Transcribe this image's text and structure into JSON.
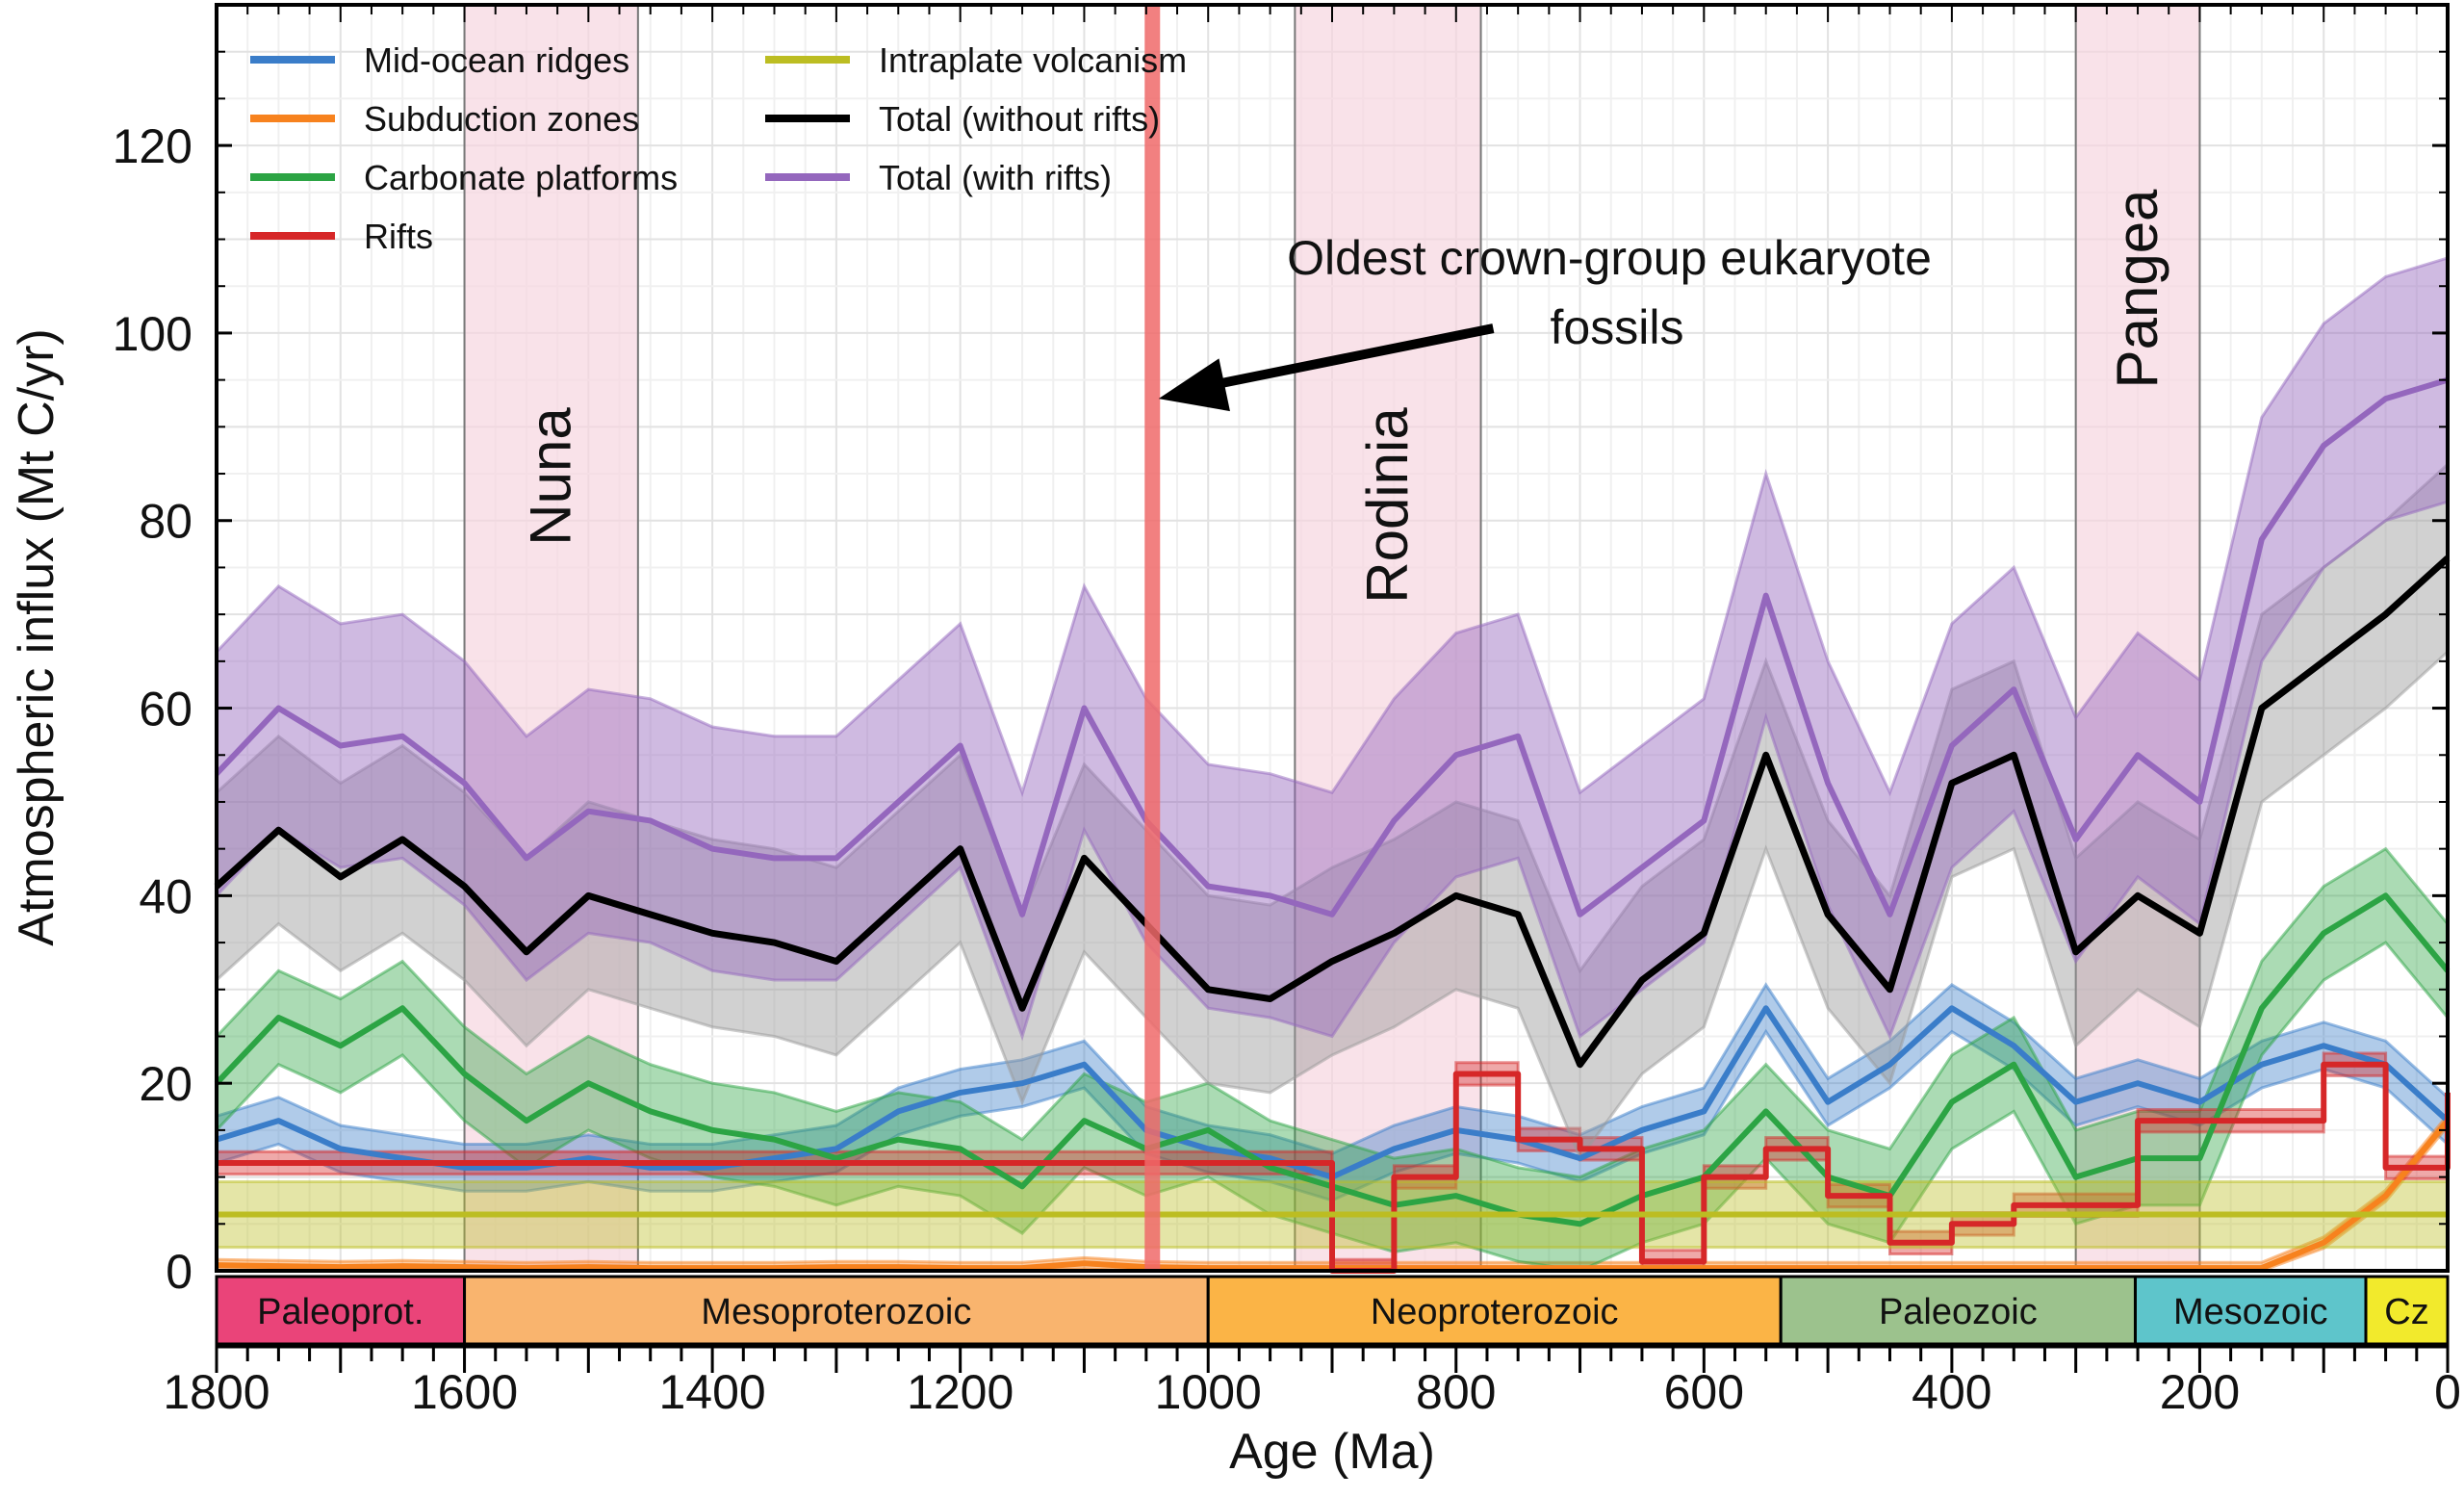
{
  "chart_data": {
    "type": "line",
    "title": "",
    "xlabel": "Age (Ma)",
    "ylabel": "Atmospheric influx (Mt C/yr)",
    "xlim": [
      1800,
      0
    ],
    "ylim": [
      0,
      135
    ],
    "x_ticks": [
      1800,
      1600,
      1400,
      1200,
      1000,
      800,
      600,
      400,
      200,
      0
    ],
    "y_ticks": [
      0,
      20,
      40,
      60,
      80,
      100,
      120
    ],
    "grid": true,
    "legend_placement": "top-left",
    "x": [
      1800,
      1750,
      1700,
      1650,
      1600,
      1550,
      1500,
      1450,
      1400,
      1350,
      1300,
      1250,
      1200,
      1150,
      1100,
      1050,
      1000,
      950,
      900,
      850,
      800,
      750,
      700,
      650,
      600,
      550,
      500,
      450,
      400,
      350,
      300,
      250,
      200,
      150,
      100,
      50,
      0
    ],
    "series": [
      {
        "name": "Mid-ocean ridges",
        "color": "#3a7dc9",
        "spread": 2.5,
        "values": [
          14,
          16,
          13,
          12,
          11,
          11,
          12,
          11,
          11,
          12,
          13,
          17,
          19,
          20,
          22,
          15,
          13,
          12,
          10,
          13,
          15,
          14,
          12,
          15,
          17,
          28,
          18,
          22,
          28,
          24,
          18,
          20,
          18,
          22,
          24,
          22,
          16
        ]
      },
      {
        "name": "Subduction zones",
        "color": "#f7821e",
        "spread": 0.6,
        "values": [
          0.6,
          0.5,
          0.4,
          0.5,
          0.4,
          0.3,
          0.4,
          0.3,
          0.3,
          0.3,
          0.4,
          0.4,
          0.3,
          0.3,
          0.8,
          0.4,
          0.3,
          0.3,
          0.3,
          0.3,
          0.3,
          0.3,
          0.3,
          0.3,
          0.3,
          0.3,
          0.3,
          0.3,
          0.3,
          0.3,
          0.3,
          0.3,
          0.3,
          0.3,
          3,
          8,
          16
        ]
      },
      {
        "name": "Carbonate platforms",
        "color": "#2ca444",
        "spread": 5,
        "values": [
          20,
          27,
          24,
          28,
          21,
          16,
          20,
          17,
          15,
          14,
          12,
          14,
          13,
          9,
          16,
          13,
          15,
          11,
          9,
          7,
          8,
          6,
          5,
          8,
          10,
          17,
          10,
          8,
          18,
          22,
          10,
          12,
          12,
          28,
          36,
          40,
          32
        ]
      },
      {
        "name": "Rifts",
        "color": "#d62728",
        "spread": 1.2,
        "step": true,
        "values": [
          11.5,
          11.5,
          11.5,
          11.5,
          11.5,
          11.5,
          11.5,
          11.5,
          11.5,
          11.5,
          11.5,
          11.5,
          11.5,
          11.5,
          11.5,
          11.5,
          11.5,
          11.5,
          0,
          10,
          21,
          14,
          13,
          1,
          10,
          13,
          8,
          3,
          5,
          7,
          7,
          16,
          16,
          16,
          22,
          11,
          19
        ]
      },
      {
        "name": "Intraplate volcanism",
        "color": "#bcbd22",
        "spread": 3.5,
        "values": [
          6,
          6,
          6,
          6,
          6,
          6,
          6,
          6,
          6,
          6,
          6,
          6,
          6,
          6,
          6,
          6,
          6,
          6,
          6,
          6,
          6,
          6,
          6,
          6,
          6,
          6,
          6,
          6,
          6,
          6,
          6,
          6,
          6,
          6,
          6,
          6,
          6
        ]
      },
      {
        "name": "Total (without rifts)",
        "color": "#000000",
        "band_color": "#9a9a9a",
        "spread": 10,
        "values": [
          41,
          47,
          42,
          46,
          41,
          34,
          40,
          38,
          36,
          35,
          33,
          39,
          45,
          28,
          44,
          37,
          30,
          29,
          33,
          36,
          40,
          38,
          22,
          31,
          36,
          55,
          38,
          30,
          52,
          55,
          34,
          40,
          36,
          60,
          65,
          70,
          76
        ]
      },
      {
        "name": "Total (with rifts)",
        "color": "#9467bd",
        "spread": 13,
        "values": [
          53,
          60,
          56,
          57,
          52,
          44,
          49,
          48,
          45,
          44,
          44,
          50,
          56,
          38,
          60,
          48,
          41,
          40,
          38,
          48,
          55,
          57,
          38,
          43,
          48,
          72,
          52,
          38,
          56,
          62,
          46,
          55,
          50,
          78,
          88,
          93,
          95
        ]
      }
    ],
    "supercontinents": [
      {
        "label": "Nuna",
        "start": 1600,
        "end": 1460
      },
      {
        "label": "Rodinia",
        "start": 930,
        "end": 780
      },
      {
        "label": "Pangea",
        "start": 300,
        "end": 200
      }
    ],
    "eras": [
      {
        "label": "Paleoprot.",
        "start": 1800,
        "end": 1600,
        "color": "#ea4479"
      },
      {
        "label": "Mesoproterozoic",
        "start": 1600,
        "end": 1000,
        "color": "#f9b46e"
      },
      {
        "label": "Neoproterozoic",
        "start": 1000,
        "end": 538,
        "color": "#fbb446"
      },
      {
        "label": "Paleozoic",
        "start": 538,
        "end": 252,
        "color": "#9cc28d"
      },
      {
        "label": "Mesozoic",
        "start": 252,
        "end": 66,
        "color": "#5ec5cb"
      },
      {
        "label": "Cz",
        "start": 66,
        "end": 0,
        "color": "#f2ea2c"
      }
    ],
    "annotation": {
      "line1": "Oldest crown-group eukaryote",
      "line2": "fossils",
      "marker_age": 1045,
      "marker_color": "#f06a6a"
    }
  }
}
